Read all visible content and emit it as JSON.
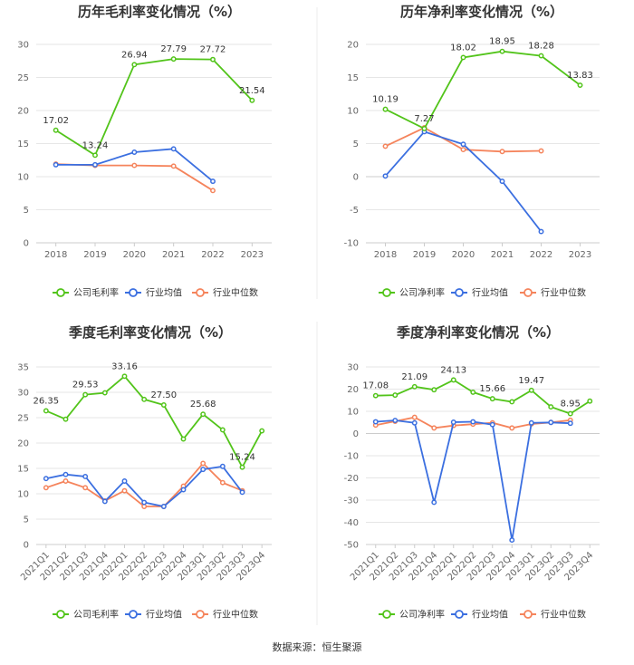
{
  "source": "数据来源：恒生聚源",
  "legend_labels": [
    "公司毛利率",
    "行业均值",
    "行业中位数",
    "公司净利率"
  ],
  "colors": {
    "company": "#52c41a",
    "avg": "#3b6fe0",
    "median": "#f5845c",
    "grid": "#e6e6e6",
    "axis": "#cccccc"
  },
  "chart_data": [
    {
      "type": "line",
      "title": "历年毛利率变化情况（%）",
      "categories": [
        "2018",
        "2019",
        "2020",
        "2021",
        "2022",
        "2023"
      ],
      "ylim": [
        0,
        30
      ],
      "yticks": [
        0,
        5,
        10,
        15,
        20,
        25,
        30
      ],
      "series": [
        {
          "name": "公司毛利率",
          "values": [
            17.02,
            13.24,
            26.94,
            27.79,
            27.72,
            21.54
          ],
          "labels": [
            "17.02",
            "13.24",
            "26.94",
            "27.79",
            "27.72",
            "21.54"
          ]
        },
        {
          "name": "行业均值",
          "values": [
            11.8,
            11.8,
            13.7,
            14.2,
            9.3,
            null
          ]
        },
        {
          "name": "行业中位数",
          "values": [
            11.9,
            11.7,
            11.7,
            11.6,
            7.9,
            null
          ]
        }
      ]
    },
    {
      "type": "line",
      "title": "历年净利率变化情况（%）",
      "categories": [
        "2018",
        "2019",
        "2020",
        "2021",
        "2022",
        "2023"
      ],
      "ylim": [
        -10,
        20
      ],
      "yticks": [
        -10,
        -5,
        0,
        5,
        10,
        15,
        20
      ],
      "series": [
        {
          "name": "公司净利率",
          "values": [
            10.19,
            7.27,
            18.02,
            18.95,
            18.28,
            13.83
          ],
          "labels": [
            "10.19",
            "7.27",
            "18.02",
            "18.95",
            "18.28",
            "13.83"
          ]
        },
        {
          "name": "行业均值",
          "values": [
            0.1,
            6.8,
            4.9,
            -0.7,
            -8.3,
            null
          ]
        },
        {
          "name": "行业中位数",
          "values": [
            4.6,
            7.4,
            4.1,
            3.8,
            3.9,
            null
          ]
        }
      ]
    },
    {
      "type": "line",
      "title": "季度毛利率变化情况（%）",
      "categories": [
        "2021Q1",
        "2021Q2",
        "2021Q3",
        "2021Q4",
        "2022Q1",
        "2022Q2",
        "2022Q3",
        "2022Q4",
        "2023Q1",
        "2023Q2",
        "2023Q3",
        "2023Q4"
      ],
      "ylim": [
        0,
        35
      ],
      "yticks": [
        0,
        5,
        10,
        15,
        20,
        25,
        30,
        35
      ],
      "series": [
        {
          "name": "公司毛利率",
          "values": [
            26.35,
            24.7,
            29.53,
            29.9,
            33.16,
            28.6,
            27.5,
            20.8,
            25.68,
            22.6,
            15.24,
            22.4
          ],
          "labels": [
            "26.35",
            "",
            "29.53",
            "",
            "33.16",
            "",
            "27.50",
            "",
            "25.68",
            "",
            "15.24",
            ""
          ]
        },
        {
          "name": "行业均值",
          "values": [
            13.0,
            13.8,
            13.4,
            8.5,
            12.5,
            8.3,
            7.5,
            10.8,
            14.8,
            15.4,
            10.3,
            null
          ]
        },
        {
          "name": "行业中位数",
          "values": [
            11.2,
            12.5,
            11.2,
            8.6,
            10.6,
            7.5,
            7.5,
            11.5,
            16.0,
            12.2,
            10.6,
            null
          ]
        }
      ]
    },
    {
      "type": "line",
      "title": "季度净利率变化情况（%）",
      "categories": [
        "2021Q1",
        "2021Q2",
        "2021Q3",
        "2021Q4",
        "2022Q1",
        "2022Q2",
        "2022Q3",
        "2022Q4",
        "2023Q1",
        "2023Q2",
        "2023Q3",
        "2023Q4"
      ],
      "ylim": [
        -50,
        30
      ],
      "yticks": [
        -50,
        -40,
        -30,
        -20,
        -10,
        0,
        10,
        20,
        30
      ],
      "series": [
        {
          "name": "公司净利率",
          "values": [
            17.08,
            17.3,
            21.09,
            19.7,
            24.13,
            18.6,
            15.66,
            14.3,
            19.47,
            12.0,
            8.95,
            14.6
          ],
          "labels": [
            "17.08",
            "",
            "21.09",
            "",
            "24.13",
            "",
            "15.66",
            "",
            "19.47",
            "",
            "8.95",
            ""
          ]
        },
        {
          "name": "行业均值",
          "values": [
            5.3,
            5.9,
            4.8,
            -31.0,
            5.1,
            5.3,
            4.0,
            -48.0,
            4.8,
            5.0,
            4.6,
            null
          ]
        },
        {
          "name": "行业中位数",
          "values": [
            3.8,
            5.5,
            7.3,
            2.5,
            3.6,
            4.2,
            4.8,
            2.5,
            4.3,
            5.0,
            6.0,
            null
          ]
        }
      ]
    }
  ]
}
